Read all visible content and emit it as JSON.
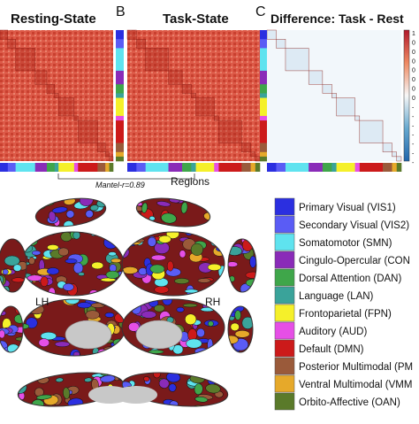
{
  "panels": {
    "resting_title": "Resting-State",
    "task_title": "Task-State",
    "diff_title": "Difference: Task - Rest",
    "label_b": "B",
    "label_c": "C"
  },
  "annotations": {
    "mantel": "Mantel-r=0.89",
    "regions": "Regions",
    "lh": "LH",
    "rh": "RH"
  },
  "colorbar_ticks": [
    "1",
    "0",
    "0",
    "0",
    "0",
    "0",
    "0",
    "0",
    "-",
    "-",
    "-",
    "-",
    "-",
    "-",
    "-"
  ],
  "colors": {
    "matrix_base": "#d9503f",
    "diff_base": "#f5f9fc"
  },
  "networks": [
    {
      "name": "Primary Visual (VIS1)",
      "color": "#2b2fe0"
    },
    {
      "name": "Secondary Visual (VIS2)",
      "color": "#5a5cf5"
    },
    {
      "name": "Somatomotor (SMN)",
      "color": "#5fe3ef"
    },
    {
      "name": "Cingulo-Opercular (CON",
      "color": "#8a2bb8"
    },
    {
      "name": "Dorsal Attention (DAN)",
      "color": "#3fa64a"
    },
    {
      "name": "Language (LAN)",
      "color": "#3aa39a"
    },
    {
      "name": "Frontoparietal (FPN)",
      "color": "#f5f02a"
    },
    {
      "name": "Auditory (AUD)",
      "color": "#e64fe6"
    },
    {
      "name": "Default (DMN)",
      "color": "#cc1a1a"
    },
    {
      "name": "Posterior Multimodal (PM",
      "color": "#9a5a3a"
    },
    {
      "name": "Ventral Multimodal (VMM",
      "color": "#e6a92a"
    },
    {
      "name": "Orbito-Affective (OAN)",
      "color": "#5a7a2a"
    }
  ]
}
